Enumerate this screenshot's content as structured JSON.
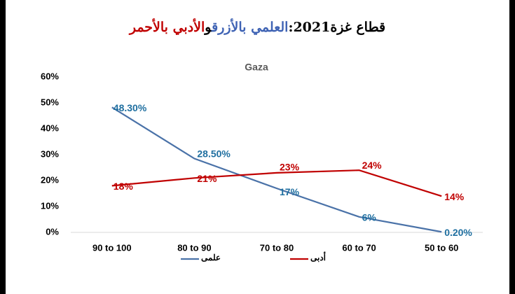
{
  "chart_data": {
    "type": "line",
    "title_segments": [
      {
        "text": "قطاع غزة2021:",
        "color": "#000000"
      },
      {
        "text": "العلمي بالأزرق",
        "color": "#3f63b4"
      },
      {
        "text": "و",
        "color": "#000000"
      },
      {
        "text": "الأدبي بالأحمر",
        "color": "#c00000"
      }
    ],
    "subtitle": "Gaza",
    "categories": [
      "90 to 100",
      "80 to 90",
      "70 to 80",
      "60 to 70",
      "50 to 60"
    ],
    "series": [
      {
        "name": "علمى",
        "color": "#4a72a8",
        "label_color": "#1f6fa0",
        "values": [
          48.3,
          28.5,
          17,
          6,
          0.2
        ],
        "value_labels": [
          "48.30%",
          "28.50%",
          "17%",
          "6%",
          "0.20%"
        ]
      },
      {
        "name": "أدبى",
        "color": "#c00000",
        "label_color": "#c00000",
        "values": [
          18,
          21,
          23,
          24,
          14
        ],
        "value_labels": [
          "18%",
          "21%",
          "23%",
          "24%",
          "14%"
        ]
      }
    ],
    "ylim": [
      0,
      60
    ],
    "yticks": [
      {
        "value": 0,
        "label": "0%"
      },
      {
        "value": 10,
        "label": "10%"
      },
      {
        "value": 20,
        "label": "20%"
      },
      {
        "value": 30,
        "label": "30%"
      },
      {
        "value": 40,
        "label": "40%"
      },
      {
        "value": 50,
        "label": "50%"
      },
      {
        "value": 60,
        "label": "60%"
      }
    ],
    "grid": false,
    "legend": "bottom"
  }
}
